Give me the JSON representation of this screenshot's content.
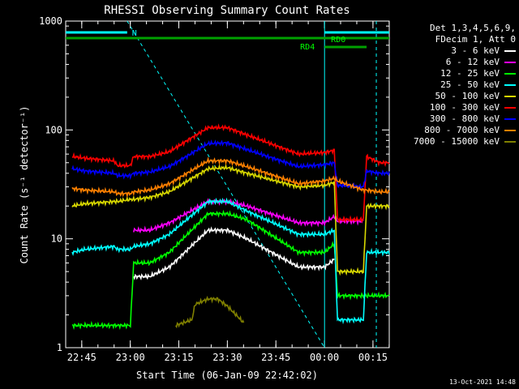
{
  "chart_data": {
    "type": "line",
    "title": "RHESSI Observing Summary Count Rates",
    "xlabel": "Start Time (06-Jan-09 22:42:02)",
    "ylabel": "Count Rate (s⁻¹ detector⁻¹)",
    "yscale": "log",
    "ylim": [
      1,
      1000
    ],
    "xlim_minutes": [
      -2,
      98
    ],
    "x_ticks": [
      "22:45",
      "23:00",
      "23:15",
      "23:30",
      "23:45",
      "00:00",
      "00:15"
    ],
    "y_ticks": [
      "1",
      "10",
      "100",
      "1000"
    ],
    "annotations": [
      "N",
      "RD0",
      "RD4"
    ],
    "legend_header": [
      "Det 1,3,4,5,6,9,",
      "FDecim 1, Att 0"
    ],
    "series": [
      {
        "name": "3 - 6 keV",
        "color": "#ffffff",
        "min": 0,
        "x": [
          0,
          18,
          19,
          24,
          30,
          42,
          48,
          54,
          70,
          78,
          81,
          82,
          95,
          98
        ],
        "y": [
          null,
          null,
          4.5,
          4.5,
          5.5,
          12,
          12,
          10,
          5.5,
          5.5,
          6.5,
          null,
          null,
          null
        ]
      },
      {
        "name": "6 - 12 keV",
        "color": "#ff00ff",
        "min": 0,
        "x": [
          0,
          18,
          19,
          24,
          30,
          42,
          48,
          54,
          70,
          78,
          81,
          82,
          90,
          91,
          95,
          98
        ],
        "y": [
          null,
          null,
          12,
          12,
          14,
          22,
          22,
          20,
          14,
          14,
          16,
          14.5,
          14.5,
          null,
          null,
          null
        ]
      },
      {
        "name": "12 - 25 keV",
        "color": "#00ff00",
        "min": 0,
        "x": [
          0,
          4,
          13,
          14,
          18,
          19,
          24,
          30,
          42,
          48,
          54,
          70,
          78,
          81,
          82,
          90,
          95,
          98
        ],
        "y": [
          1.6,
          1.6,
          1.6,
          1.6,
          1.6,
          6,
          6,
          7.5,
          17,
          17,
          15,
          7.5,
          7.5,
          9,
          3,
          3,
          3,
          3
        ]
      },
      {
        "name": "25 - 50 keV",
        "color": "#00ffff",
        "min": 0,
        "x": [
          0,
          4,
          13,
          14,
          18,
          19,
          24,
          30,
          42,
          48,
          54,
          70,
          78,
          81,
          82,
          90,
          91,
          95,
          98
        ],
        "y": [
          7.5,
          8,
          8.5,
          8,
          8,
          8.5,
          9,
          11,
          22,
          22,
          18,
          11,
          11,
          12,
          1.8,
          1.8,
          7.5,
          7.5,
          7.5
        ]
      },
      {
        "name": "50 - 100 keV",
        "color": "#d8d800",
        "min": 0,
        "x": [
          0,
          4,
          13,
          14,
          18,
          19,
          24,
          30,
          42,
          48,
          54,
          70,
          78,
          81,
          82,
          90,
          91,
          95,
          98
        ],
        "y": [
          20,
          21,
          22,
          22,
          23,
          23,
          24,
          27,
          44,
          45,
          40,
          30,
          31,
          33,
          5,
          5,
          20,
          20,
          20
        ]
      },
      {
        "name": "100 - 300 keV",
        "color": "#ff0000",
        "min": 0,
        "x": [
          0,
          4,
          13,
          14,
          18,
          19,
          24,
          30,
          42,
          48,
          54,
          70,
          78,
          81,
          82,
          90,
          91,
          95,
          98
        ],
        "y": [
          57,
          55,
          52,
          47,
          47,
          57,
          57,
          63,
          105,
          105,
          90,
          60,
          62,
          65,
          15,
          15,
          57,
          50,
          50
        ]
      },
      {
        "name": "300 - 800 keV",
        "color": "#0000ff",
        "min": 0,
        "x": [
          0,
          4,
          13,
          14,
          18,
          19,
          24,
          30,
          42,
          48,
          54,
          70,
          78,
          81,
          82,
          90,
          91,
          95,
          98
        ],
        "y": [
          44,
          42,
          40,
          38,
          38,
          40,
          41,
          46,
          75,
          76,
          66,
          46,
          48,
          50,
          31,
          30,
          42,
          40,
          40
        ]
      },
      {
        "name": "800 - 7000 keV",
        "color": "#ff8000",
        "min": 0,
        "x": [
          0,
          4,
          13,
          14,
          18,
          19,
          24,
          30,
          42,
          48,
          54,
          70,
          78,
          81,
          82,
          90,
          91,
          95,
          98
        ],
        "y": [
          29,
          28,
          27,
          26,
          26,
          27,
          28,
          32,
          52,
          52,
          46,
          32,
          34,
          36,
          34,
          28,
          28,
          27,
          27
        ]
      },
      {
        "name": "7000 - 15000 keV",
        "color": "#808000",
        "min": 1,
        "x": [
          0,
          31,
          32,
          37,
          38,
          42,
          45,
          48,
          53,
          54,
          98
        ],
        "y": [
          null,
          null,
          1.6,
          1.8,
          2.5,
          2.8,
          2.8,
          2.4,
          1.7,
          null,
          null
        ]
      }
    ]
  },
  "stamp": "13-Oct-2021 14:48"
}
